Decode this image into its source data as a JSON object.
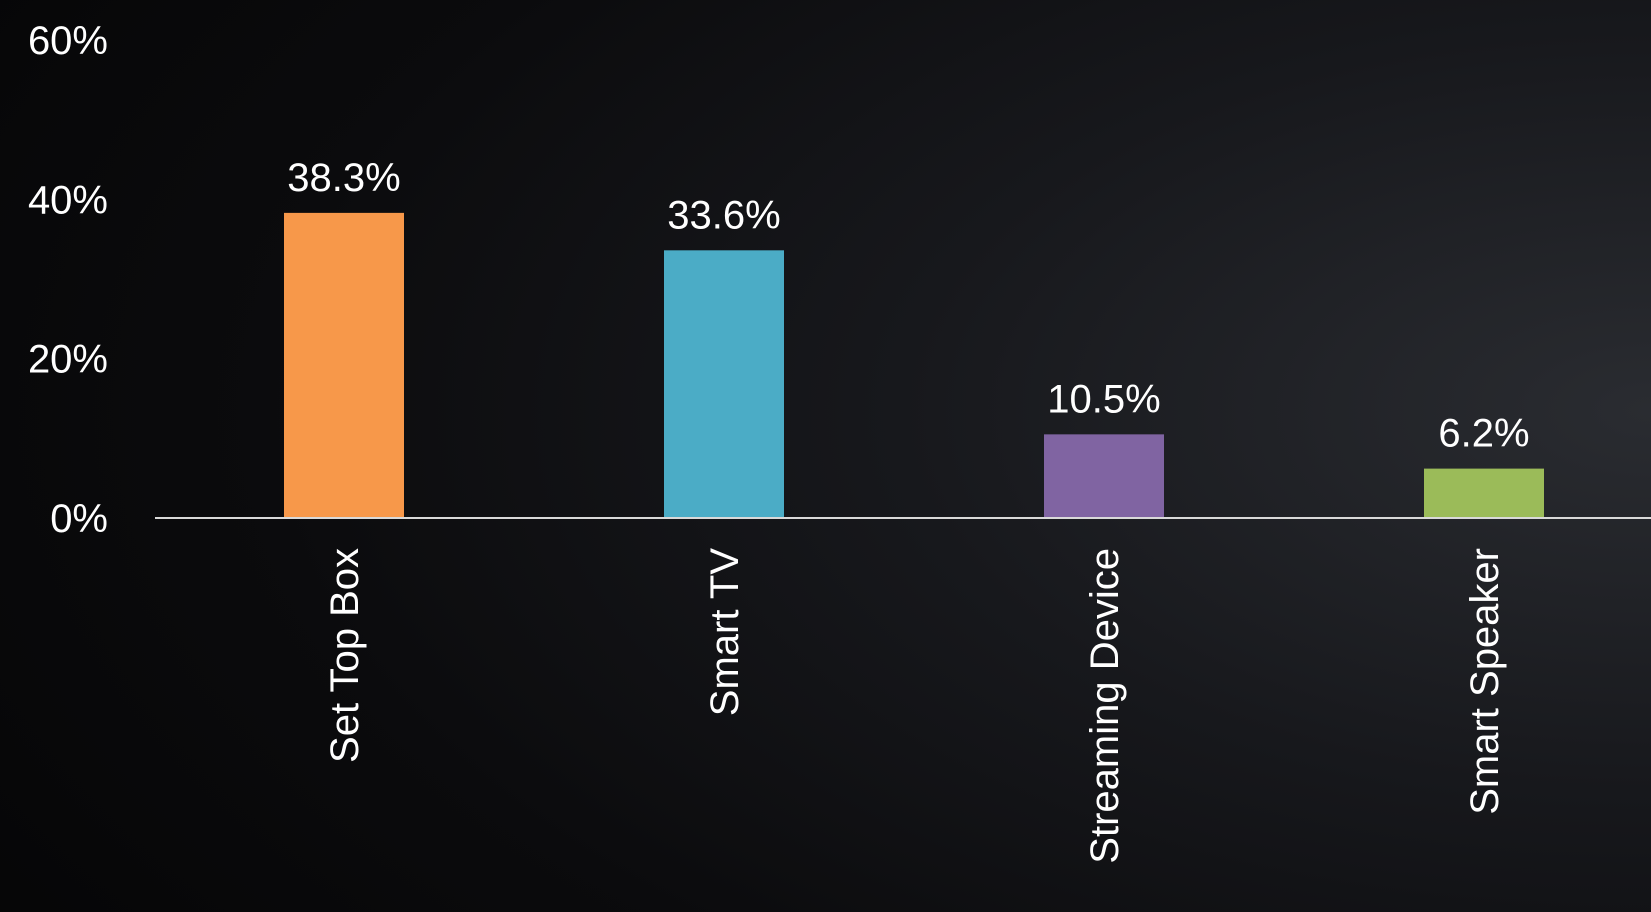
{
  "chart_data": {
    "type": "bar",
    "title": "",
    "xlabel": "",
    "ylabel": "",
    "categories": [
      "Set Top Box",
      "Smart TV",
      "Streaming Device",
      "Smart Speaker"
    ],
    "values": [
      38.3,
      33.6,
      10.5,
      6.2
    ],
    "data_labels": [
      "38.3%",
      "33.6%",
      "10.5%",
      "6.2%"
    ],
    "colors": [
      "#F7984A",
      "#4BACC6",
      "#8064A2",
      "#9BBB59"
    ],
    "ylim": [
      0,
      60
    ],
    "yticks": [
      0,
      20,
      40,
      60
    ],
    "ytick_labels": [
      "0%",
      "20%",
      "40%",
      "60%"
    ],
    "grid": false,
    "legend": "none",
    "axis_color": "#D9D9D9",
    "text_color": "#FFFFFF"
  }
}
